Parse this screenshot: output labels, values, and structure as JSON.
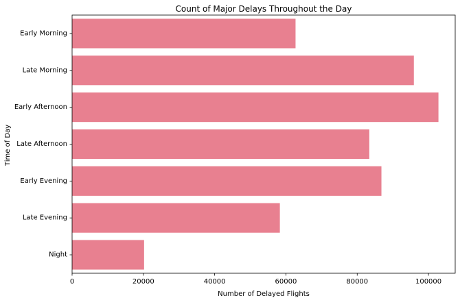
{
  "chart_data": {
    "type": "bar",
    "orientation": "horizontal",
    "title": "Count of Major Delays Throughout the Day",
    "xlabel": "Number of Delayed Flights",
    "ylabel": "Time of Day",
    "categories": [
      "Early Morning",
      "Late Morning",
      "Early Afternoon",
      "Late Afternoon",
      "Early Evening",
      "Late Evening",
      "Night"
    ],
    "values": [
      62700,
      95900,
      102800,
      83400,
      86800,
      58300,
      20200
    ],
    "xlim": [
      0,
      107500
    ],
    "xticks": [
      0,
      20000,
      40000,
      60000,
      80000,
      100000
    ],
    "bar_color": "#e88090",
    "grid": false,
    "legend": "none"
  }
}
